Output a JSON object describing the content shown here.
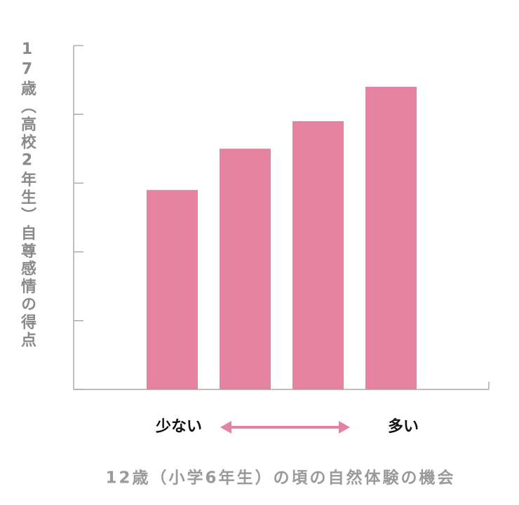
{
  "chart_data": {
    "type": "bar",
    "y_axis_label": "17歳（高校2年生）自尊感情の得点",
    "x_axis_label": "12歳（小学6年生）の頃の自然体験の機会",
    "annotations": [
      "少ない",
      "多い"
    ],
    "categories": [
      null,
      null,
      null,
      null
    ],
    "values": [
      2.9,
      3.5,
      3.9,
      4.4
    ],
    "color": "#e5829f",
    "ylim": [
      0,
      5
    ],
    "yticks": [
      0,
      1,
      2,
      3,
      4,
      5
    ]
  }
}
